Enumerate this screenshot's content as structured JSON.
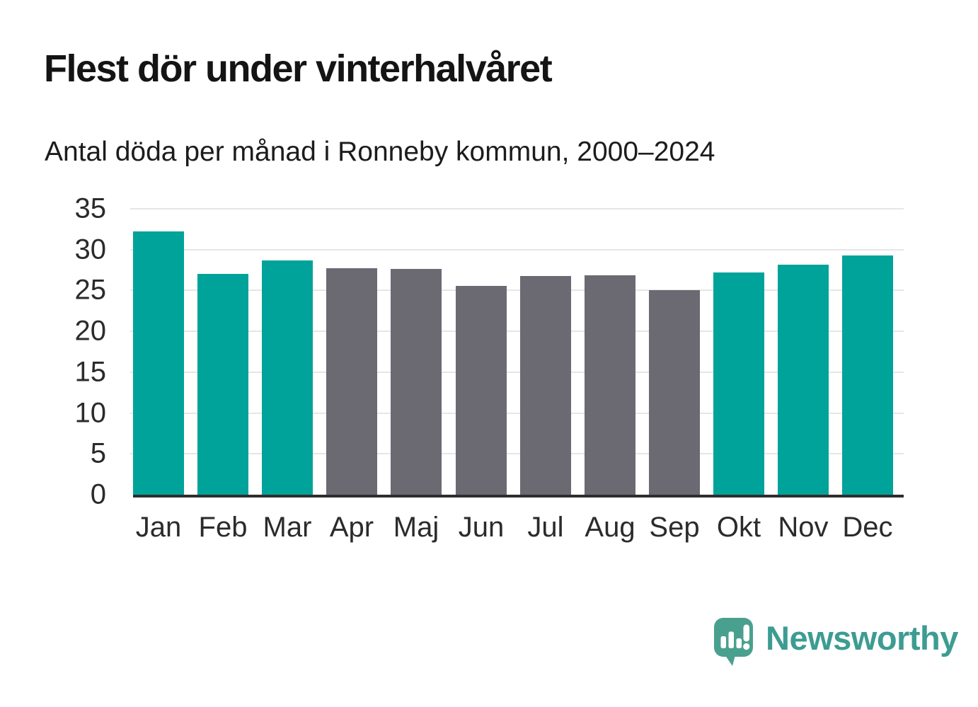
{
  "header": {
    "title": "Flest dör under vinterhalvåret",
    "subtitle": "Antal döda per månad i Ronneby kommun, 2000–2024"
  },
  "chart_data": {
    "type": "bar",
    "title": "Flest dör under vinterhalvåret",
    "subtitle": "Antal döda per månad i Ronneby kommun, 2000–2024",
    "categories": [
      "Jan",
      "Feb",
      "Mar",
      "Apr",
      "Maj",
      "Jun",
      "Jul",
      "Aug",
      "Sep",
      "Okt",
      "Nov",
      "Dec"
    ],
    "values": [
      32.2,
      27.0,
      28.7,
      27.7,
      27.6,
      25.6,
      26.8,
      26.9,
      25.0,
      27.2,
      28.2,
      29.3
    ],
    "groups": [
      "winter",
      "winter",
      "winter",
      "summer",
      "summer",
      "summer",
      "summer",
      "summer",
      "summer",
      "winter",
      "winter",
      "winter"
    ],
    "group_colors": {
      "winter": "#00a39a",
      "summer": "#6b6a72"
    },
    "xlabel": "",
    "ylabel": "",
    "ylim": [
      0,
      35
    ],
    "yticks": [
      0,
      5,
      10,
      15,
      20,
      25,
      30,
      35
    ],
    "grid": "horizontal",
    "legend": "none"
  },
  "colors": {
    "background": "#ffffff",
    "axis_line": "#2e2e2e",
    "gridline": "#e6e6e6",
    "tick_text": "#2b2b2b",
    "title_text": "#141414"
  },
  "footer": {
    "logo_text": "Newsworthy",
    "logo_text_color": "#3d9c92",
    "logo_icon_color": "#4aa08f",
    "logo_icon": "speech-bubble-bar-chart-icon"
  }
}
